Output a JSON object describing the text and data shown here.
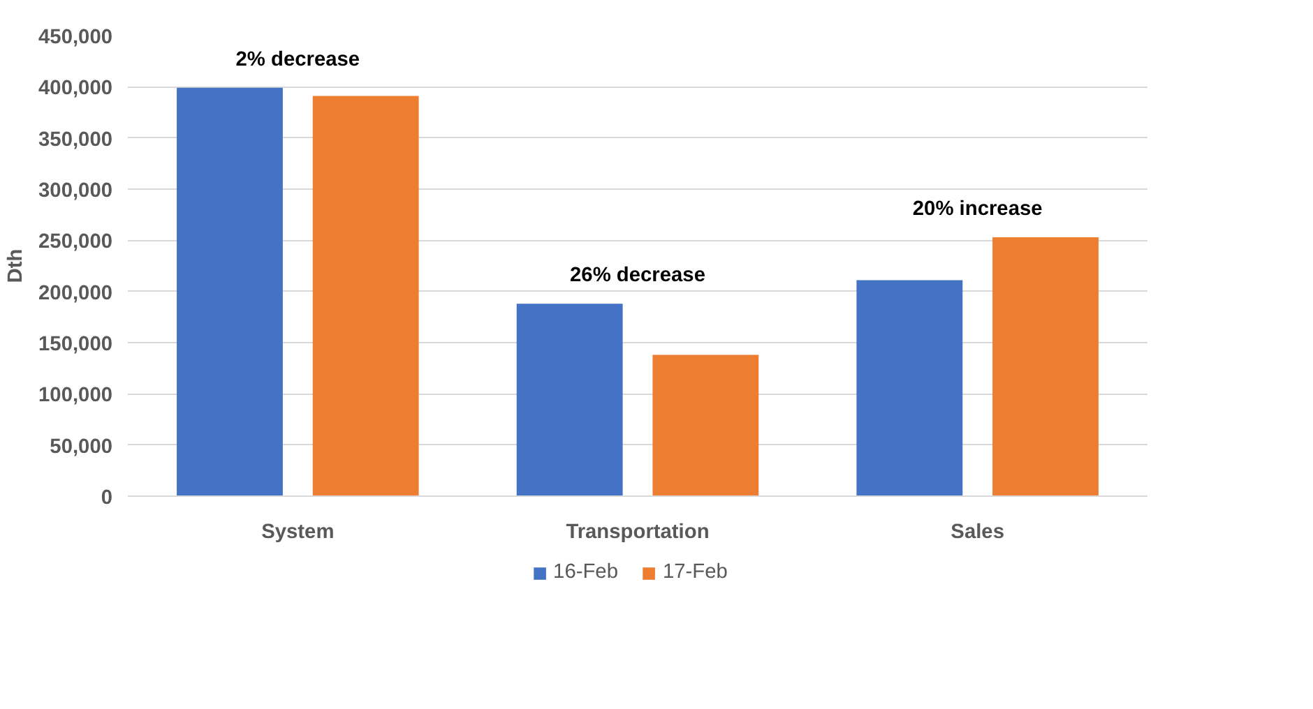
{
  "chart_data": {
    "type": "bar",
    "ylabel": "Dth",
    "categories": [
      "System",
      "Transportation",
      "Sales"
    ],
    "series": [
      {
        "name": "16-Feb",
        "color": "#4472c4",
        "values": [
          399000,
          188000,
          211000
        ]
      },
      {
        "name": "17-Feb",
        "color": "#ed7d31",
        "values": [
          391000,
          138000,
          253000
        ]
      }
    ],
    "ylim": [
      0,
      450000
    ],
    "yticks": [
      {
        "value": 0,
        "label": "0"
      },
      {
        "value": 50000,
        "label": "50,000"
      },
      {
        "value": 100000,
        "label": "100,000"
      },
      {
        "value": 150000,
        "label": "150,000"
      },
      {
        "value": 200000,
        "label": "200,000"
      },
      {
        "value": 250000,
        "label": "250,000"
      },
      {
        "value": 300000,
        "label": "300,000"
      },
      {
        "value": 350000,
        "label": "350,000"
      },
      {
        "value": 400000,
        "label": "400,000"
      },
      {
        "value": 450000,
        "label": "450,000"
      }
    ],
    "annotations": [
      "2% decrease",
      "26% decrease",
      "20% increase"
    ],
    "grid": "y",
    "legend": "bottom"
  }
}
